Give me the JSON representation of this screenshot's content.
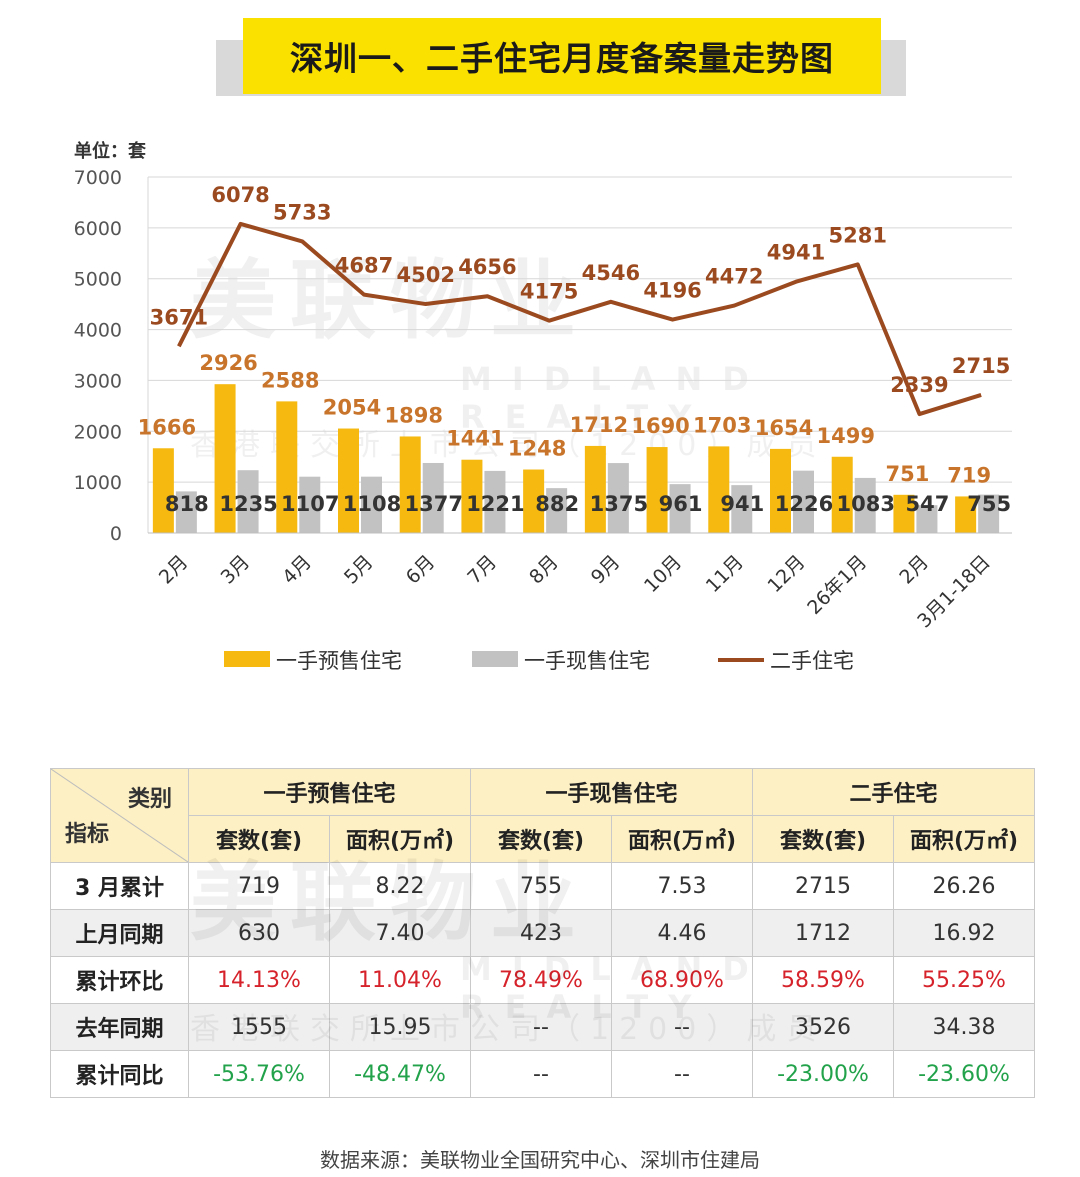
{
  "title": "深圳一、二手住宅月度备案量走势图",
  "chart_data": {
    "type": "bar",
    "unit_label": "单位：套",
    "categories": [
      "2月",
      "3月",
      "4月",
      "5月",
      "6月",
      "7月",
      "8月",
      "9月",
      "10月",
      "11月",
      "12月",
      "26年1月",
      "2月",
      "3月1-18日"
    ],
    "yticks": [
      "7000",
      "6000",
      "5000",
      "4000",
      "3000",
      "2000",
      "1000",
      "0"
    ],
    "ylim": [
      0,
      7000
    ],
    "grid": true,
    "legend_position": "bottom",
    "series": [
      {
        "name": "一手预售住宅",
        "type": "bar",
        "color": "#f5b90f",
        "label_color": "#c8742a",
        "values": [
          1666,
          2926,
          2588,
          2054,
          1898,
          1441,
          1248,
          1712,
          1690,
          1703,
          1654,
          1499,
          751,
          719
        ]
      },
      {
        "name": "一手现售住宅",
        "type": "bar",
        "color": "#c2c2c2",
        "label_color": "#333333",
        "values": [
          818,
          1235,
          1107,
          1108,
          1377,
          1221,
          882,
          1375,
          961,
          941,
          1226,
          1083,
          547,
          755
        ]
      },
      {
        "name": "二手住宅",
        "type": "line",
        "color": "#9b4a20",
        "label_color": "#9b4a20",
        "values": [
          3671,
          6078,
          5733,
          4687,
          4502,
          4656,
          4175,
          4546,
          4196,
          4472,
          4941,
          5281,
          2339,
          2715
        ]
      }
    ]
  },
  "watermark": {
    "cn": "美联物业",
    "en": "MIDLAND REALTY",
    "sub": "香港联交所上市公司（1200）成员"
  },
  "table": {
    "corner_top": "类别",
    "corner_bottom": "指标",
    "groups": [
      "一手预售住宅",
      "一手现售住宅",
      "二手住宅"
    ],
    "subheaders": [
      "套数(套)",
      "面积(万㎡)",
      "套数(套)",
      "面积(万㎡)",
      "套数(套)",
      "面积(万㎡)"
    ],
    "rows": [
      {
        "label": "3 月累计",
        "cells": [
          "719",
          "8.22",
          "755",
          "7.53",
          "2715",
          "26.26"
        ],
        "tone": "normal"
      },
      {
        "label": "上月同期",
        "cells": [
          "630",
          "7.40",
          "423",
          "4.46",
          "1712",
          "16.92"
        ],
        "tone": "normal"
      },
      {
        "label": "累计环比",
        "cells": [
          "14.13%",
          "11.04%",
          "78.49%",
          "68.90%",
          "58.59%",
          "55.25%"
        ],
        "tone": "red"
      },
      {
        "label": "去年同期",
        "cells": [
          "1555",
          "15.95",
          "--",
          "--",
          "3526",
          "34.38"
        ],
        "tone": "normal"
      },
      {
        "label": "累计同比",
        "cells": [
          "-53.76%",
          "-48.47%",
          "--",
          "--",
          "-23.00%",
          "-23.60%"
        ],
        "tone": "green"
      }
    ]
  },
  "source": "数据来源：美联物业全国研究中心、深圳市住建局"
}
